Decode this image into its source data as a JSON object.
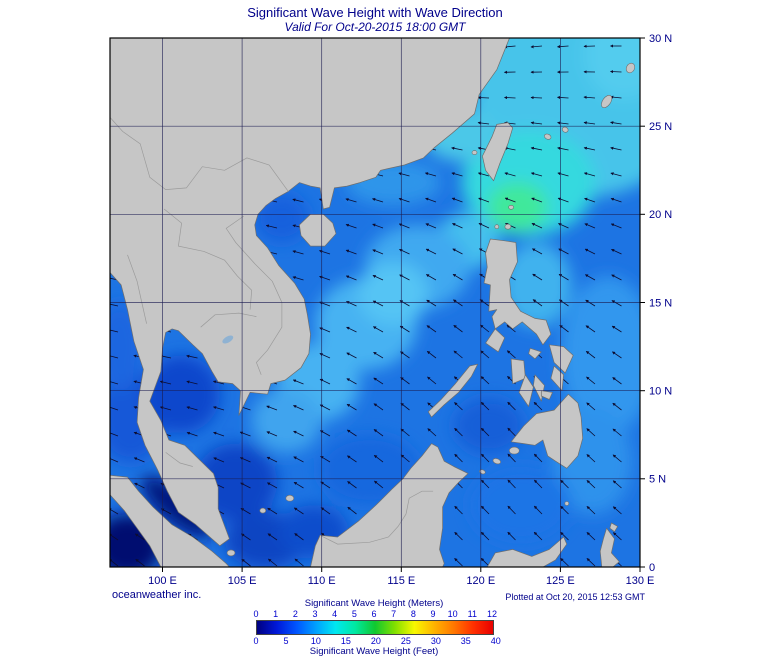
{
  "title": "Significant Wave Height with Wave Direction",
  "subtitle": "Valid For Oct-20-2015 18:00 GMT",
  "footer": {
    "credit": "oceanweather inc.",
    "plotted": "Plotted at Oct 20, 2015 12:53 GMT"
  },
  "axes": {
    "lon_ticks": [
      {
        "label": "100 E",
        "lon": 100
      },
      {
        "label": "105 E",
        "lon": 105
      },
      {
        "label": "110 E",
        "lon": 110
      },
      {
        "label": "115 E",
        "lon": 115
      },
      {
        "label": "120 E",
        "lon": 120
      },
      {
        "label": "125 E",
        "lon": 125
      },
      {
        "label": "130 E",
        "lon": 130
      }
    ],
    "lat_ticks": [
      {
        "label": "30 N",
        "lat": 30
      },
      {
        "label": "25 N",
        "lat": 25
      },
      {
        "label": "20 N",
        "lat": 20
      },
      {
        "label": "15 N",
        "lat": 15
      },
      {
        "label": "10 N",
        "lat": 10
      },
      {
        "label": "5 N",
        "lat": 5
      },
      {
        "label": "0",
        "lat": 0
      }
    ]
  },
  "legend": {
    "meters_label": "Significant Wave Height (Meters)",
    "feet_label": "Significant Wave Height (Feet)",
    "meters_ticks": [
      0,
      1,
      2,
      3,
      4,
      5,
      6,
      7,
      8,
      9,
      10,
      11,
      12
    ],
    "feet_ticks": [
      0,
      5,
      10,
      15,
      20,
      25,
      30,
      35,
      40
    ],
    "gradient_colors": [
      "#000080",
      "#0018d8",
      "#0055ff",
      "#00a0ff",
      "#00e8f0",
      "#00e8a0",
      "#10c830",
      "#80e000",
      "#f8f800",
      "#ffb400",
      "#ff7800",
      "#ff3000",
      "#e80000"
    ]
  },
  "colors": {
    "text": "#00008b",
    "tick_numbers": "#0000cc",
    "land": "#c6c6c6",
    "coast": "#6e6e6e",
    "ocean_base": "#1d74e3",
    "grid": "#1b1b50",
    "arrow": "#0c0c30"
  }
}
